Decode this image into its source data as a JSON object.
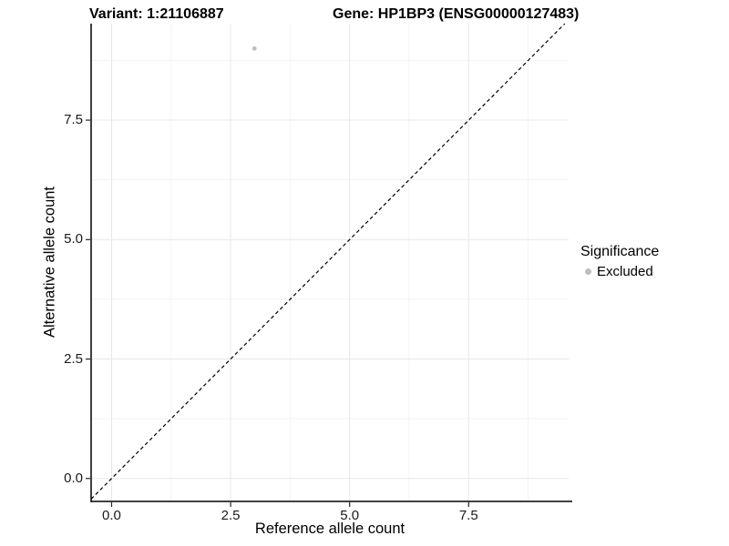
{
  "chart_data": {
    "type": "scatter",
    "titles": {
      "left": "Variant: 1:21106887",
      "right": "Gene: HP1BP3 (ENSG00000127483)"
    },
    "xlabel": "Reference allele count",
    "ylabel": "Alternative allele count",
    "x_ticks": {
      "values": [
        0,
        2.5,
        5,
        7.5
      ],
      "labels": [
        "0.0",
        "2.5",
        "5.0",
        "7.5"
      ]
    },
    "y_ticks": {
      "values": [
        0,
        2.5,
        5,
        7.5
      ],
      "labels": [
        "0.0",
        "2.5",
        "5.0",
        "7.5"
      ]
    },
    "minor_ticks": [
      1.25,
      3.75,
      6.25,
      8.75
    ],
    "xlim": [
      -0.43,
      9.6
    ],
    "ylim": [
      -0.48,
      9.52
    ],
    "grid": true,
    "points": [
      {
        "x": 3,
        "y": 9,
        "series": "Excluded"
      }
    ],
    "reference_line": {
      "type": "identity",
      "slope": 1,
      "intercept": 0,
      "style": "dashed",
      "color": "#000000"
    },
    "legend": {
      "title": "Significance",
      "position": "right",
      "items": [
        {
          "label": "Excluded",
          "color": "#bebebe",
          "marker": "circle"
        }
      ]
    },
    "colors": {
      "point": "#bebebe",
      "axis": "#000000",
      "tick": "#222222",
      "grid_major": "#e8e8e8",
      "grid_minor": "#f3f3f3",
      "background": "#ffffff"
    }
  }
}
